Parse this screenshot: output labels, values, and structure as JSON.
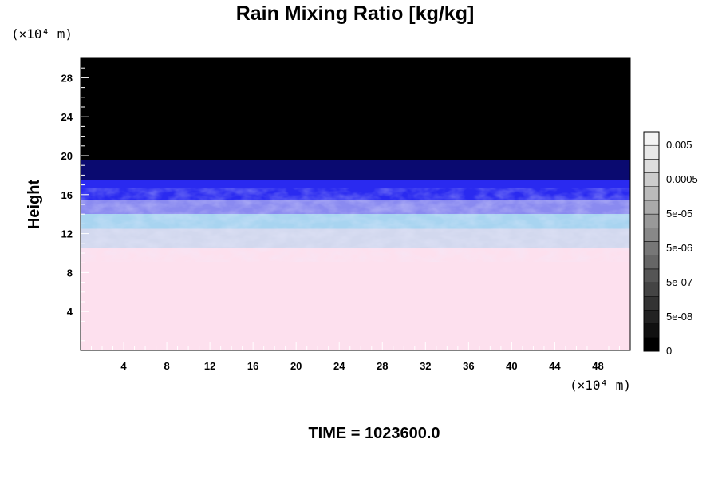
{
  "chart_data": {
    "type": "heatmap",
    "title": "Rain Mixing Ratio [kg/kg]",
    "ylabel": "Height",
    "xunit": "(×10⁴ m)",
    "yunit": "(×10⁴ m)",
    "xlim": [
      0,
      51
    ],
    "ylim": [
      0,
      30
    ],
    "x_ticks": [
      "4",
      "8",
      "12",
      "16",
      "20",
      "24",
      "28",
      "32",
      "36",
      "40",
      "44",
      "48"
    ],
    "x_tick_values": [
      4,
      8,
      12,
      16,
      20,
      24,
      28,
      32,
      36,
      40,
      44,
      48
    ],
    "y_ticks": [
      "4",
      "8",
      "12",
      "16",
      "20",
      "24",
      "28"
    ],
    "y_tick_values": [
      4,
      8,
      12,
      16,
      20,
      24,
      28
    ],
    "colorbar": {
      "labels": [
        "0",
        "5e-08",
        "5e-07",
        "5e-06",
        "5e-05",
        "0.0005",
        "0.005"
      ],
      "levels": 16,
      "colors": [
        "#000000",
        "#111111",
        "#222222",
        "#333333",
        "#444444",
        "#555555",
        "#666666",
        "#777777",
        "#888888",
        "#999999",
        "#aaaaaa",
        "#bbbbbb",
        "#cccccc",
        "#dddddd",
        "#e8e8e8",
        "#f4f4f4"
      ]
    },
    "field_bands": [
      {
        "from": 0,
        "to": 10.5,
        "color": "#fde0ee"
      },
      {
        "from": 10.5,
        "to": 12.5,
        "color": "#d2d8ee"
      },
      {
        "from": 12.5,
        "to": 14,
        "color": "#a8d4f0"
      },
      {
        "from": 14,
        "to": 15.5,
        "color": "#8a8af0"
      },
      {
        "from": 15.5,
        "to": 17.5,
        "color": "#2a2af0"
      },
      {
        "from": 17.5,
        "to": 19.5,
        "color": "#0a0a70"
      },
      {
        "from": 19.5,
        "to": 30,
        "color": "#000000"
      }
    ]
  },
  "footer": {
    "time_label": "TIME = 1023600.0"
  }
}
